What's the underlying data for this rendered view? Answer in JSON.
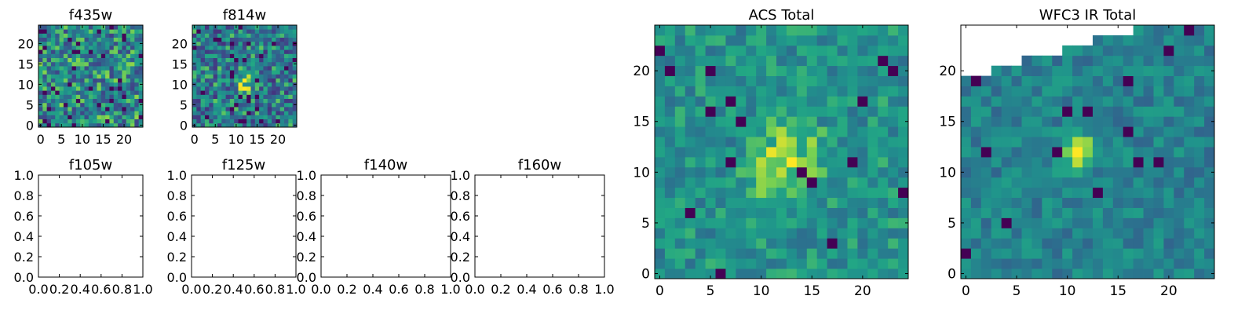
{
  "chart_data": [
    {
      "id": "f435w",
      "type": "heatmap",
      "title": "f435w",
      "size": 25,
      "xlim": [
        -0.5,
        24.5
      ],
      "ylim": [
        -0.5,
        24.5
      ],
      "xticks": [
        0,
        5,
        10,
        15,
        20
      ],
      "yticks": [
        0,
        5,
        10,
        15,
        20
      ],
      "colormap": "viridis",
      "style": "noise"
    },
    {
      "id": "f814w",
      "type": "heatmap",
      "title": "f814w",
      "size": 25,
      "xlim": [
        -0.5,
        24.5
      ],
      "ylim": [
        -0.5,
        24.5
      ],
      "xticks": [
        0,
        5,
        10,
        15,
        20
      ],
      "yticks": [
        0,
        5,
        10,
        15,
        20
      ],
      "colormap": "viridis",
      "style": "noise-with-source"
    },
    {
      "id": "f105w",
      "type": "heatmap",
      "title": "f105w",
      "empty": true,
      "xlim": [
        0,
        1
      ],
      "ylim": [
        0,
        1
      ],
      "xticks": [
        "0.0",
        "0.2",
        "0.4",
        "0.6",
        "0.8",
        "1.0"
      ],
      "yticks": [
        "0.0",
        "0.2",
        "0.4",
        "0.6",
        "0.8",
        "1.0"
      ]
    },
    {
      "id": "f125w",
      "type": "heatmap",
      "title": "f125w",
      "empty": true,
      "xlim": [
        0,
        1
      ],
      "ylim": [
        0,
        1
      ],
      "xticks": [
        "0.0",
        "0.2",
        "0.4",
        "0.6",
        "0.8",
        "1.0"
      ],
      "yticks": [
        "0.0",
        "0.2",
        "0.4",
        "0.6",
        "0.8",
        "1.0"
      ]
    },
    {
      "id": "f140w",
      "type": "heatmap",
      "title": "f140w",
      "empty": true,
      "xlim": [
        0,
        1
      ],
      "ylim": [
        0,
        1
      ],
      "xticks": [
        "0.0",
        "0.2",
        "0.4",
        "0.6",
        "0.8",
        "1.0"
      ],
      "yticks": [
        "0.0",
        "0.2",
        "0.4",
        "0.6",
        "0.8",
        "1.0"
      ]
    },
    {
      "id": "f160w",
      "type": "heatmap",
      "title": "f160w",
      "empty": true,
      "xlim": [
        0,
        1
      ],
      "ylim": [
        0,
        1
      ],
      "xticks": [
        "0.0",
        "0.2",
        "0.4",
        "0.6",
        "0.8",
        "1.0"
      ],
      "yticks": [
        "0.0",
        "0.2",
        "0.4",
        "0.6",
        "0.8",
        "1.0"
      ]
    },
    {
      "id": "acs_total",
      "type": "heatmap",
      "title": "ACS Total",
      "size": 25,
      "xlim": [
        -0.5,
        24.5
      ],
      "ylim": [
        -0.5,
        24.5
      ],
      "xticks": [
        0,
        5,
        10,
        15,
        20
      ],
      "yticks": [
        0,
        5,
        10,
        15,
        20
      ],
      "colormap": "viridis",
      "style": "source-centered"
    },
    {
      "id": "wfc3_ir_total",
      "type": "heatmap",
      "title": "WFC3 IR Total",
      "size": 25,
      "xlim": [
        -0.5,
        24.5
      ],
      "ylim": [
        -0.5,
        24.5
      ],
      "xticks": [
        0,
        5,
        10,
        15,
        20
      ],
      "yticks": [
        0,
        5,
        10,
        15,
        20
      ],
      "colormap": "viridis",
      "style": "source-with-blank-top-left"
    }
  ],
  "colors": {
    "background": "#ffffff",
    "axis": "#000000",
    "viridis_low": "#440154",
    "viridis_mid": "#21918c",
    "viridis_high": "#fde725"
  }
}
